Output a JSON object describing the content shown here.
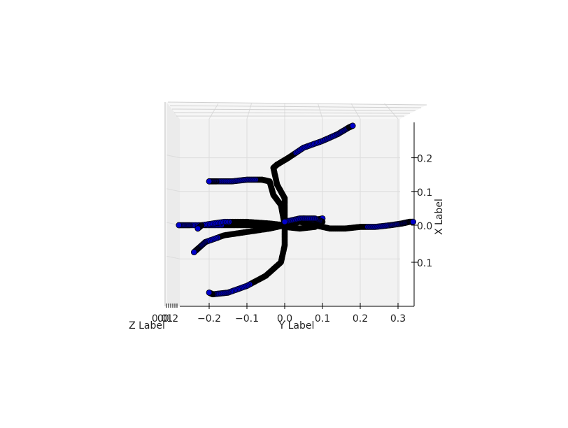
{
  "chart_data": {
    "type": "scatter",
    "subtype": "3d-trajectories",
    "title": "",
    "xlabel": "Y Label",
    "ylabel": "X Label",
    "zlabel": "Z Label",
    "y_axis_ticks": [
      "−0.2",
      "−0.1",
      "0.0",
      "0.1",
      "0.2",
      "0.3"
    ],
    "x_axis_ticks": [
      "0.2",
      "0.1",
      "0.0",
      "0.1"
    ],
    "z_axis_ticks": [
      "0.0",
      "0.1",
      "0.2"
    ],
    "marker_color": "#0000cc",
    "edge_color": "#000000",
    "pane_color": "#f2f2f2",
    "grid": true,
    "series": [
      {
        "points": [
          [
            0.0,
            0.02
          ],
          [
            0.0,
            0.08
          ],
          [
            -0.02,
            0.12
          ],
          [
            -0.03,
            0.17
          ],
          [
            -0.02,
            0.18
          ],
          [
            0.01,
            0.2
          ],
          [
            0.05,
            0.23
          ],
          [
            0.1,
            0.25
          ],
          [
            0.14,
            0.27
          ],
          [
            0.17,
            0.29
          ],
          [
            0.18,
            0.295
          ]
        ]
      },
      {
        "points": [
          [
            0.0,
            0.0
          ],
          [
            -0.01,
            0.06
          ],
          [
            -0.03,
            0.09
          ],
          [
            -0.04,
            0.13
          ],
          [
            -0.06,
            0.135
          ],
          [
            -0.1,
            0.135
          ],
          [
            -0.14,
            0.13
          ],
          [
            -0.18,
            0.13
          ],
          [
            -0.2,
            0.13
          ]
        ]
      },
      {
        "points": [
          [
            0.0,
            0.0
          ],
          [
            0.04,
            0.01
          ],
          [
            0.08,
            0.0
          ],
          [
            0.12,
            -0.01
          ],
          [
            0.16,
            -0.01
          ],
          [
            0.2,
            -0.005
          ],
          [
            0.24,
            -0.005
          ],
          [
            0.28,
            0.0
          ],
          [
            0.31,
            0.005
          ],
          [
            0.33,
            0.01
          ],
          [
            0.34,
            0.01
          ]
        ]
      },
      {
        "points": [
          [
            0.0,
            0.0
          ],
          [
            -0.05,
            0.0
          ],
          [
            -0.1,
            0.0
          ],
          [
            -0.15,
            0.0
          ],
          [
            -0.2,
            0.0
          ],
          [
            -0.25,
            0.0
          ],
          [
            -0.28,
            0.0
          ]
        ]
      },
      {
        "points": [
          [
            0.0,
            0.0
          ],
          [
            -0.04,
            -0.01
          ],
          [
            -0.1,
            -0.02
          ],
          [
            -0.16,
            -0.03
          ],
          [
            -0.21,
            -0.05
          ],
          [
            -0.23,
            -0.07
          ],
          [
            -0.24,
            -0.08
          ]
        ]
      },
      {
        "points": [
          [
            0.0,
            -0.01
          ],
          [
            0.0,
            -0.06
          ],
          [
            -0.01,
            -0.11
          ],
          [
            -0.05,
            -0.15
          ],
          [
            -0.1,
            -0.18
          ],
          [
            -0.15,
            -0.2
          ],
          [
            -0.19,
            -0.205
          ],
          [
            -0.2,
            -0.2
          ]
        ]
      },
      {
        "points": [
          [
            0.0,
            0.0
          ],
          [
            0.02,
            0.01
          ],
          [
            0.05,
            0.02
          ],
          [
            0.08,
            0.015
          ],
          [
            0.1,
            0.02
          ]
        ]
      },
      {
        "points": [
          [
            0.0,
            0.0
          ],
          [
            -0.04,
            0.005
          ],
          [
            -0.1,
            0.01
          ],
          [
            -0.16,
            0.01
          ],
          [
            -0.22,
            0.0
          ],
          [
            -0.23,
            -0.01
          ]
        ]
      },
      {
        "points": [
          [
            0.0,
            -0.005
          ],
          [
            0.04,
            -0.01
          ],
          [
            0.08,
            -0.005
          ],
          [
            0.1,
            0.01
          ],
          [
            0.08,
            0.02
          ],
          [
            0.04,
            0.02
          ],
          [
            0.0,
            0.01
          ]
        ]
      }
    ]
  }
}
